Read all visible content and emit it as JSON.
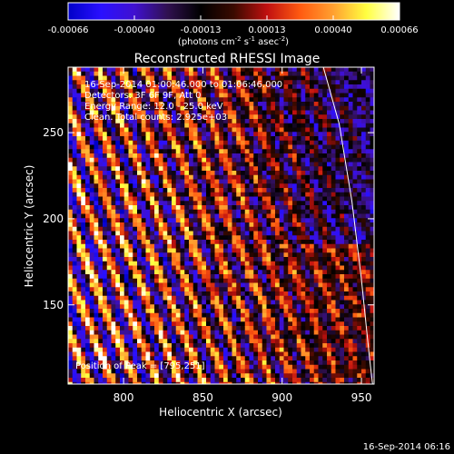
{
  "chart_data": {
    "type": "heatmap",
    "title": "Reconstructed RHESSI Image",
    "xlabel": "Heliocentric X (arcsec)",
    "ylabel": "Heliocentric Y (arcsec)",
    "xlim": [
      765,
      958
    ],
    "ylim": [
      104,
      288
    ],
    "xticks": [
      800,
      850,
      900,
      950
    ],
    "yticks": [
      150,
      200,
      250
    ],
    "colorbar": {
      "ticks": [
        "-0.00066",
        "-0.00040",
        "-0.00013",
        "0.00013",
        "0.00040",
        "0.00066"
      ],
      "min": -0.00066,
      "max": 0.00066,
      "unit_label": {
        "prefix": "(photons cm",
        "sup1": "-2",
        "mid1": " s",
        "sup2": "-1",
        "mid2": " asec",
        "sup3": "-2",
        "suffix": ")"
      },
      "colors": [
        "#0000c8",
        "#2a10ff",
        "#4010d0",
        "#301050",
        "#000000",
        "#3a0a00",
        "#c01010",
        "#ff5a10",
        "#ffa030",
        "#ffff40",
        "#ffffff"
      ]
    },
    "annotations": [
      "16-Sep-2014 01:00:46.000 to 01:06:46.000",
      "Detectors: 3F 6F 9F, Att 0",
      "Energy Range: 12.0 - 25.0 keV",
      "Clean. Total counts: 2.925e+03"
    ],
    "peak_label": "Position of Peak = [795,251]",
    "peak": [
      795,
      251
    ],
    "limb": [
      [
        926,
        288
      ],
      [
        936,
        255
      ],
      [
        944,
        210
      ],
      [
        950,
        165
      ],
      [
        955,
        120
      ],
      [
        957,
        104
      ]
    ]
  },
  "footer": {
    "timestamp": "16-Sep-2014 06:16"
  }
}
